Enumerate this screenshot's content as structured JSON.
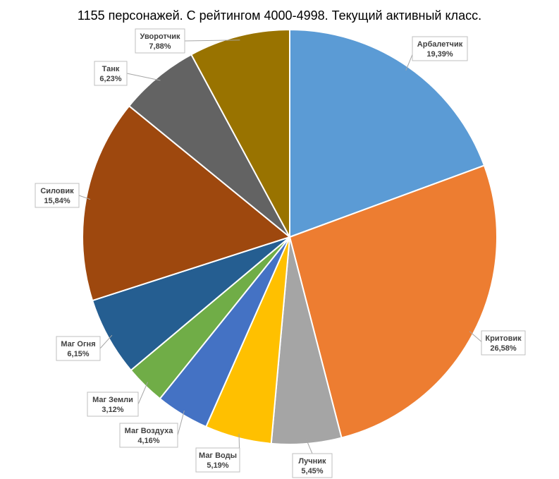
{
  "chart_data": {
    "type": "pie",
    "title": "1155 персонажей. С  рейтингом 4000-4998. Текущий активный класс.",
    "slices": [
      {
        "name": "Арбалетчик",
        "value": 19.39,
        "label": "19,39%",
        "color": "#5B9BD5"
      },
      {
        "name": "Критовик",
        "value": 26.58,
        "label": "26,58%",
        "color": "#ED7D31"
      },
      {
        "name": "Лучник",
        "value": 5.45,
        "label": "5,45%",
        "color": "#A5A5A5"
      },
      {
        "name": "Маг Воды",
        "value": 5.19,
        "label": "5,19%",
        "color": "#FFC000"
      },
      {
        "name": "Маг Воздуха",
        "value": 4.16,
        "label": "4,16%",
        "color": "#4472C4"
      },
      {
        "name": "Маг Земли",
        "value": 3.12,
        "label": "3,12%",
        "color": "#70AD47"
      },
      {
        "name": "Маг Огня",
        "value": 6.15,
        "label": "6,15%",
        "color": "#255E91"
      },
      {
        "name": "Силовик",
        "value": 15.84,
        "label": "15,84%",
        "color": "#9E480E"
      },
      {
        "name": "Танк",
        "value": 6.23,
        "label": "6,23%",
        "color": "#636363"
      },
      {
        "name": "Уворотчик",
        "value": 7.88,
        "label": "7,88%",
        "color": "#997300"
      }
    ]
  }
}
